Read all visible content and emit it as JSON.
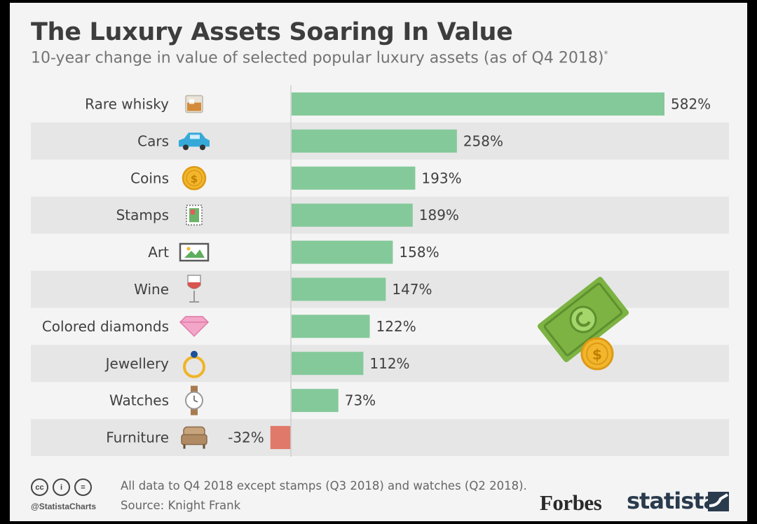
{
  "title": "The Luxury Assets Soaring In Value",
  "subtitle": "10-year change in value of selected popular luxury assets (as of Q4 2018)",
  "subtitle_mark": "*",
  "chart_data": {
    "type": "bar",
    "orientation": "horizontal",
    "title": "The Luxury Assets Soaring In Value",
    "categories": [
      "Rare whisky",
      "Cars",
      "Coins",
      "Stamps",
      "Art",
      "Wine",
      "Colored diamonds",
      "Jewellery",
      "Watches",
      "Furniture"
    ],
    "icons": [
      "whisky-glass-icon",
      "car-icon",
      "coin-icon",
      "stamp-icon",
      "picture-frame-icon",
      "wine-glass-icon",
      "diamond-icon",
      "ring-icon",
      "watch-icon",
      "armchair-icon"
    ],
    "values": [
      582,
      258,
      193,
      189,
      158,
      147,
      122,
      112,
      73,
      -32
    ],
    "value_labels": [
      "582%",
      "258%",
      "193%",
      "189%",
      "158%",
      "147%",
      "122%",
      "112%",
      "73%",
      "-32%"
    ],
    "unit": "%",
    "xlim": [
      -32,
      582
    ],
    "positive_color": "#84c99a",
    "negative_color": "#e1796a"
  },
  "footer": {
    "note": "All data to Q4 2018 except stamps (Q3 2018) and watches (Q2 2018).",
    "source": "Source: Knight Frank",
    "handle": "@StatistaCharts",
    "cc_icons": [
      "cc",
      "i",
      "="
    ]
  },
  "brands": {
    "forbes": "Forbes",
    "statista": "statista"
  }
}
